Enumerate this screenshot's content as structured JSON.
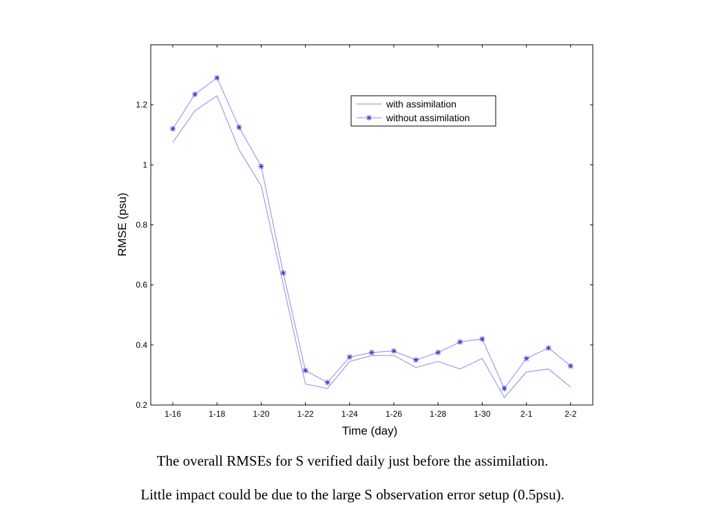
{
  "chart_data": {
    "type": "line",
    "xlabel": "Time (day)",
    "ylabel": "RMSE (psu)",
    "x_tick_labels": [
      "1-16",
      "1-18",
      "1-20",
      "1-22",
      "1-24",
      "1-26",
      "1-28",
      "1-30",
      "2-1",
      "2-2"
    ],
    "y_tick_labels": [
      "0.2",
      "0.4",
      "0.6",
      "0.8",
      "1",
      "1.2"
    ],
    "ylim": [
      0.2,
      1.4
    ],
    "grid": false,
    "legend_placement": "top-right",
    "x": [
      "1-16",
      "1-17",
      "1-18",
      "1-19",
      "1-20",
      "1-21",
      "1-22",
      "1-23",
      "1-24",
      "1-25",
      "1-26",
      "1-27",
      "1-28",
      "1-29",
      "1-30",
      "1-31",
      "2-1",
      "2-1",
      "2-2"
    ],
    "series": [
      {
        "name": "with assimilation",
        "marker": "none",
        "color": "#8888ee",
        "values": [
          1.075,
          1.18,
          1.23,
          1.05,
          0.93,
          0.6,
          0.27,
          0.255,
          0.345,
          0.365,
          0.365,
          0.325,
          0.345,
          0.32,
          0.355,
          0.225,
          0.31,
          0.32,
          0.26
        ]
      },
      {
        "name": "without assimilation",
        "marker": "star",
        "color": "#8888ee",
        "marker_color": "#3333cc",
        "values": [
          1.12,
          1.235,
          1.29,
          1.125,
          0.995,
          0.64,
          0.315,
          0.275,
          0.36,
          0.375,
          0.38,
          0.35,
          0.375,
          0.41,
          0.42,
          0.255,
          0.355,
          0.39,
          0.33
        ]
      }
    ]
  },
  "captions": {
    "line1": "The overall RMSEs for S verified daily just before the assimilation.",
    "line2": "Little impact could be due to the large S observation error setup (0.5psu)."
  }
}
